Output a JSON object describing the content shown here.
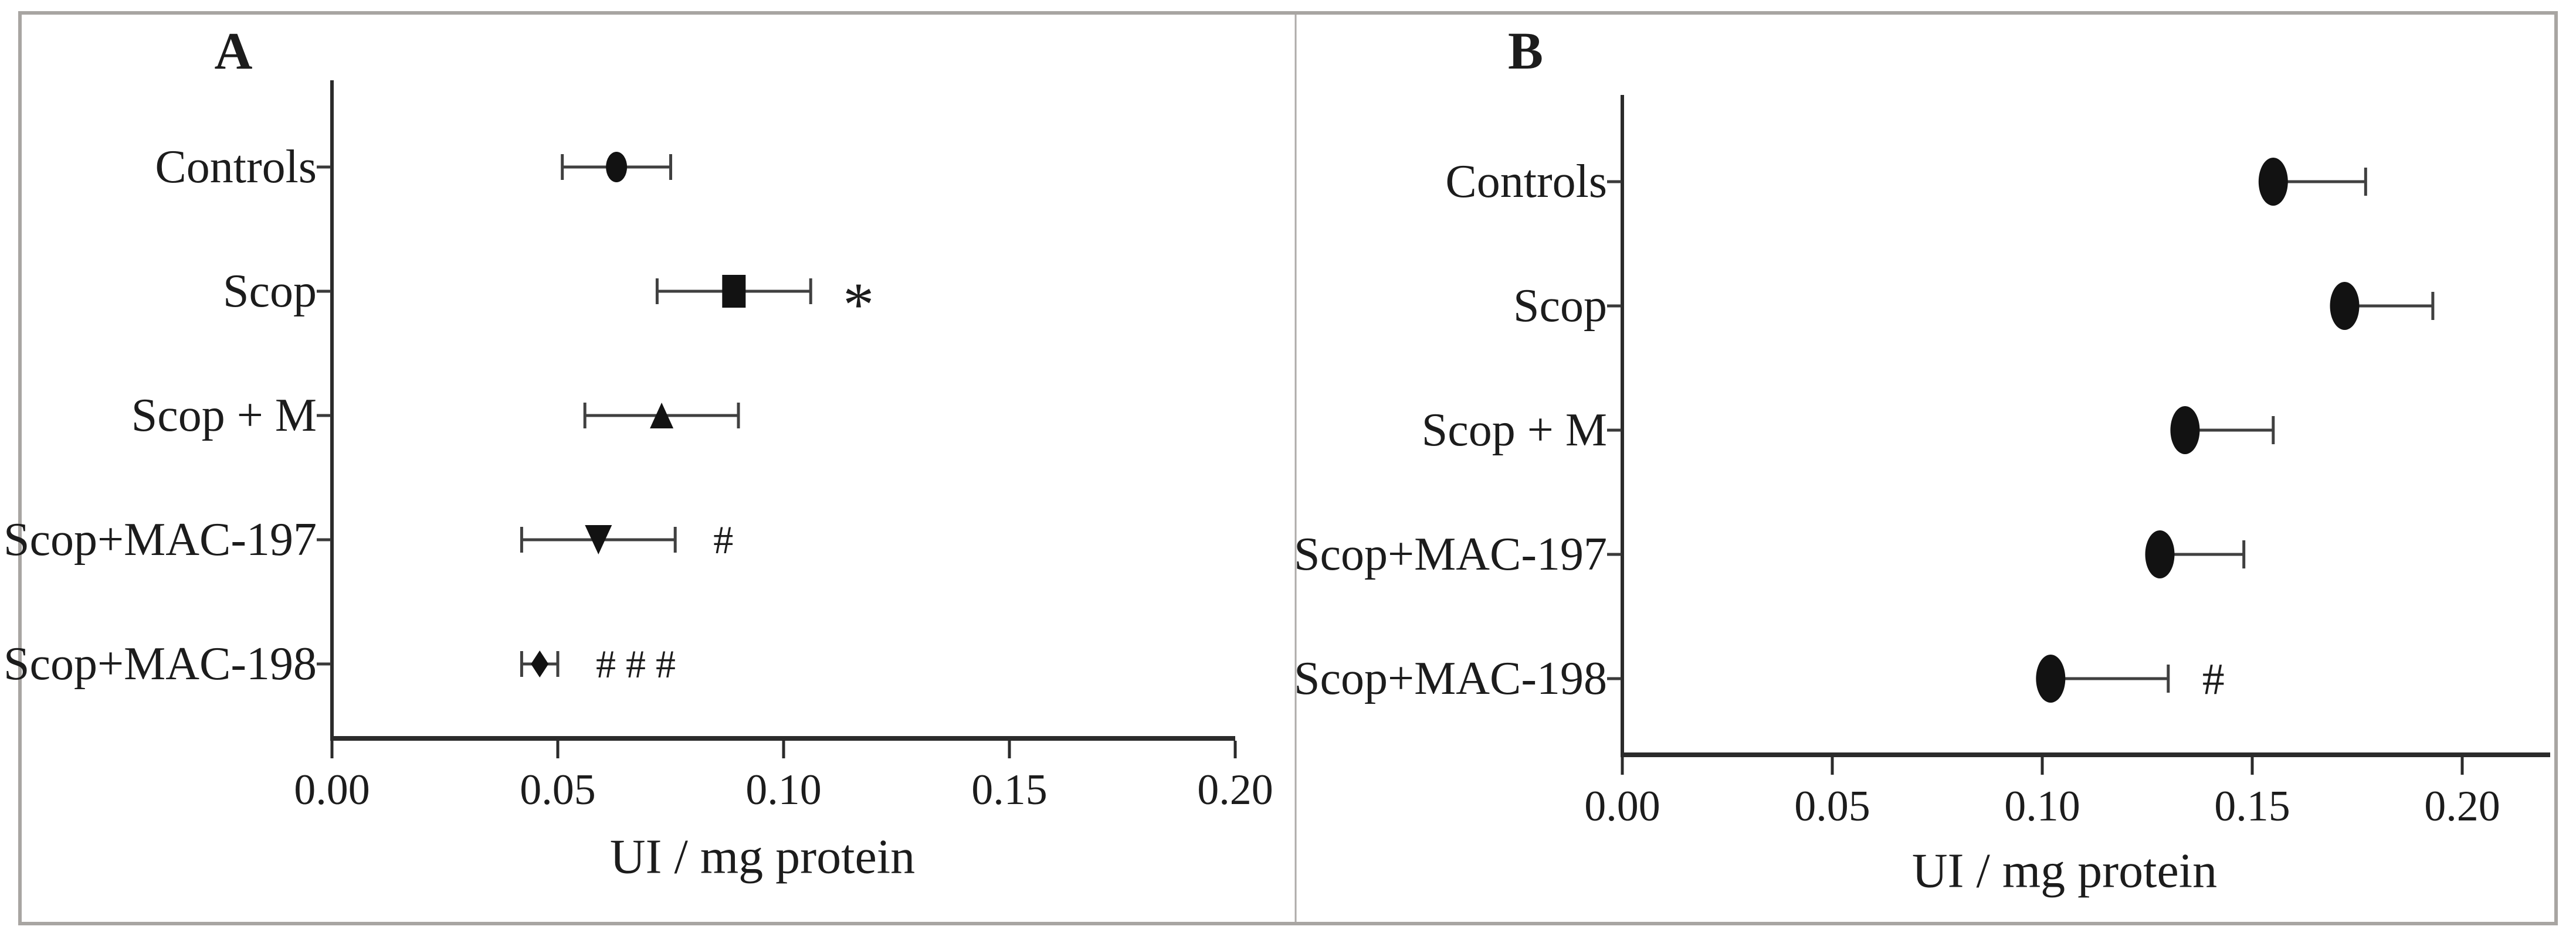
{
  "figure": {
    "background": "#ffffff",
    "border_color": "#a8a5a2",
    "divider_color": "#aeaba9",
    "ink_color": "#1c1c1c",
    "axis_color": "#2b2b2b",
    "error_bar_color": "#404040",
    "marker_color": "#121212"
  },
  "chart_data": [
    {
      "type": "scatter",
      "panel_label": "A",
      "xlabel": "UI / mg protein",
      "xtick_labels": [
        "0.00",
        "0.05",
        "0.10",
        "0.15",
        "0.20"
      ],
      "xtick_values": [
        0,
        0.05,
        0.1,
        0.15,
        0.2
      ],
      "xlim": [
        0,
        0.2
      ],
      "grid": false,
      "error_style": "both",
      "categories": [
        "Controls",
        "Scop",
        "Scop + M",
        "Scop+MAC-197",
        "Scop+MAC-198"
      ],
      "points": [
        {
          "category": "Controls",
          "marker": "circle",
          "value": 0.063,
          "error": 0.012,
          "annotation": ""
        },
        {
          "category": "Scop",
          "marker": "square",
          "value": 0.089,
          "error": 0.017,
          "annotation": "*"
        },
        {
          "category": "Scop + M",
          "marker": "triangle-up",
          "value": 0.073,
          "error": 0.017,
          "annotation": ""
        },
        {
          "category": "Scop+MAC-197",
          "marker": "triangle-down",
          "value": 0.059,
          "error": 0.017,
          "annotation": "#"
        },
        {
          "category": "Scop+MAC-198",
          "marker": "diamond",
          "value": 0.046,
          "error": 0.004,
          "annotation": "# # #"
        }
      ]
    },
    {
      "type": "scatter",
      "panel_label": "B",
      "xlabel": "UI / mg protein",
      "xtick_labels": [
        "0.00",
        "0.05",
        "0.10",
        "0.15",
        "0.20"
      ],
      "xtick_values": [
        0,
        0.05,
        0.1,
        0.15,
        0.2
      ],
      "xlim": [
        0,
        0.22
      ],
      "grid": false,
      "error_style": "plus",
      "categories": [
        "Controls",
        "Scop",
        "Scop + M",
        "Scop+MAC-197",
        "Scop+MAC-198"
      ],
      "points": [
        {
          "category": "Controls",
          "marker": "circle",
          "value": 0.155,
          "error": 0.022,
          "annotation": ""
        },
        {
          "category": "Scop",
          "marker": "circle",
          "value": 0.172,
          "error": 0.021,
          "annotation": ""
        },
        {
          "category": "Scop + M",
          "marker": "circle",
          "value": 0.134,
          "error": 0.021,
          "annotation": ""
        },
        {
          "category": "Scop+MAC-197",
          "marker": "circle",
          "value": 0.128,
          "error": 0.02,
          "annotation": ""
        },
        {
          "category": "Scop+MAC-198",
          "marker": "circle",
          "value": 0.102,
          "error": 0.028,
          "annotation": "#"
        }
      ]
    }
  ]
}
